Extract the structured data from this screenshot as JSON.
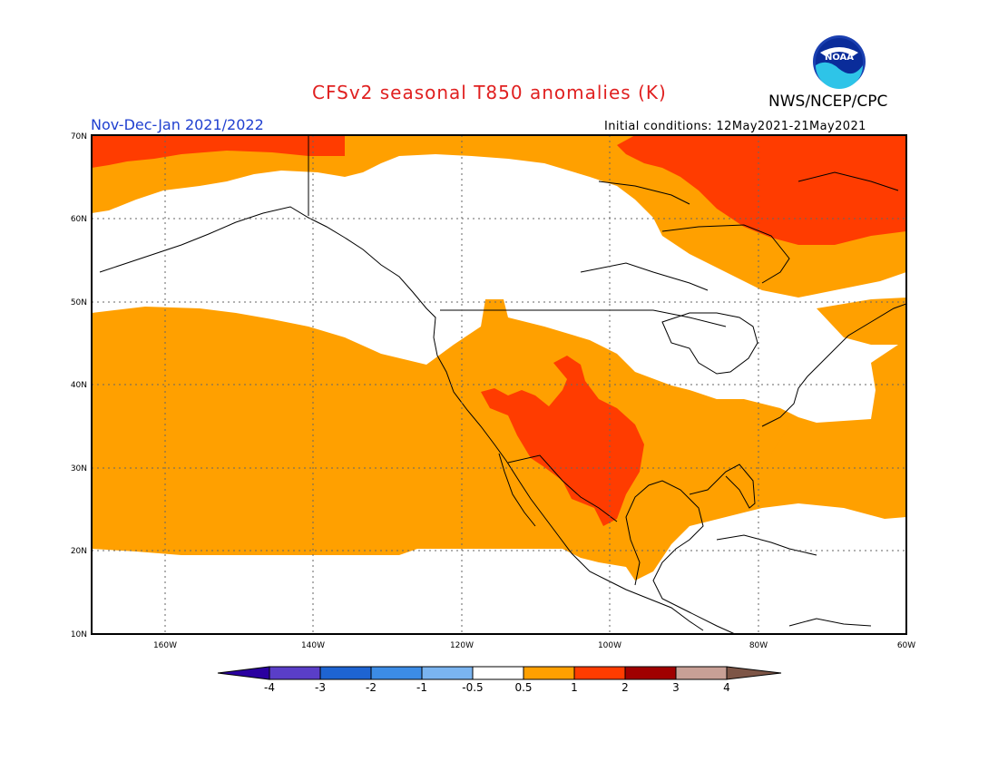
{
  "header": {
    "title": "CFSv2 seasonal T850 anomalies (K)",
    "period": "Nov-Dec-Jan 2021/2022",
    "agency": "NWS/NCEP/CPC",
    "initial_conditions": "Initial conditions: 12May2021-21May2021",
    "logo_text": "NOAA"
  },
  "colors": {
    "title": "#e02020",
    "period": "#2040d0",
    "warm_05_1": "#ffa000",
    "warm_1_2": "#ff3c00",
    "land_outline": "#000000"
  },
  "map": {
    "lat_labels": [
      "70N",
      "60N",
      "50N",
      "40N",
      "30N",
      "20N",
      "10N"
    ],
    "lon_labels": [
      "160W",
      "140W",
      "120W",
      "100W",
      "80W",
      "60W"
    ]
  },
  "colorbar": {
    "labels": [
      "-4",
      "-3",
      "-2",
      "-1",
      "-0.5",
      "0.5",
      "1",
      "2",
      "3",
      "4"
    ],
    "colors": [
      "#2a00a0",
      "#5a3ec8",
      "#1e64d2",
      "#3c8ce6",
      "#7ab4f0",
      "#ffffff",
      "#ffa000",
      "#ff3c00",
      "#a00000",
      "#c8a096",
      "#7d5546"
    ]
  }
}
